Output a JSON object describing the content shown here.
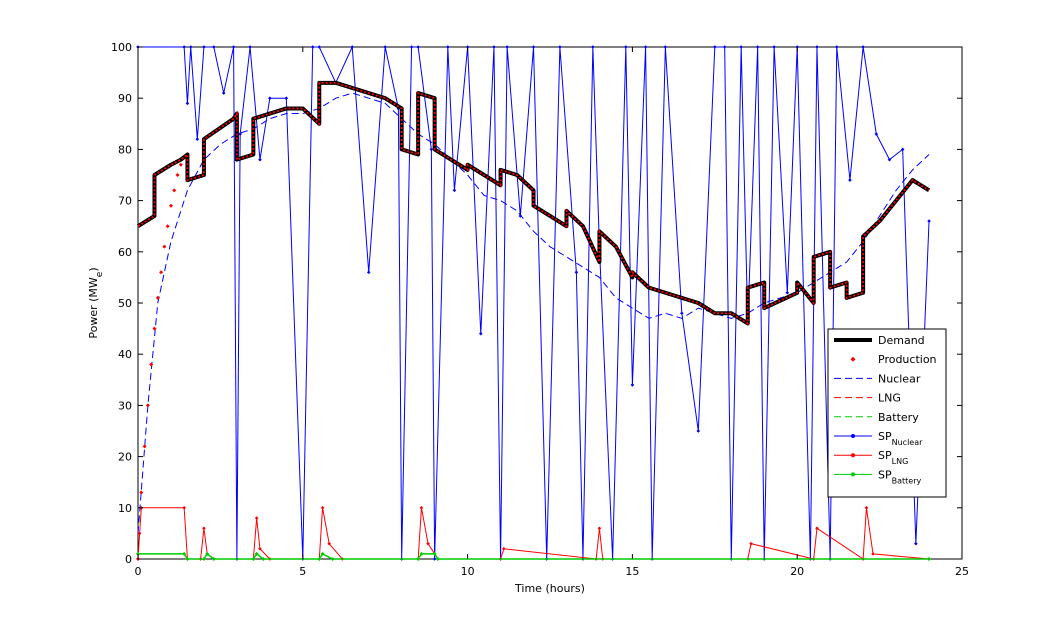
{
  "chart_data": {
    "type": "line",
    "xlabel": "Time (hours)",
    "ylabel_main": "Power (MW",
    "ylabel_sub": "e",
    "ylabel_close": ")",
    "xlim": [
      0,
      25
    ],
    "ylim": [
      0,
      100
    ],
    "x_ticks": [
      "0",
      "5",
      "10",
      "15",
      "20",
      "25"
    ],
    "y_ticks": [
      "0",
      "10",
      "20",
      "30",
      "40",
      "50",
      "60",
      "70",
      "80",
      "90",
      "100"
    ],
    "grid": false,
    "legend_position": "lower-right",
    "legend": [
      {
        "label": "Demand",
        "sub": "",
        "style": "thick-solid",
        "color": "#000000"
      },
      {
        "label": "Production",
        "sub": "",
        "style": "dots",
        "color": "#ff0000"
      },
      {
        "label": "Nuclear",
        "sub": "",
        "style": "dashed",
        "color": "#0000ff"
      },
      {
        "label": "LNG",
        "sub": "",
        "style": "dashed",
        "color": "#ff0000"
      },
      {
        "label": "Battery",
        "sub": "",
        "style": "dashed",
        "color": "#00cc00"
      },
      {
        "label": "SP",
        "sub": "Nuclear",
        "style": "line-dots",
        "color": "#0000ff"
      },
      {
        "label": "SP",
        "sub": "LNG",
        "style": "line-dots",
        "color": "#ff0000"
      },
      {
        "label": "SP",
        "sub": "Battery",
        "style": "line-dots",
        "color": "#00cc00"
      }
    ],
    "series": [
      {
        "name": "Demand",
        "color": "#000000",
        "x": [
          0,
          0.5,
          0.5,
          1.0,
          1.3,
          1.5,
          1.5,
          2.0,
          2.0,
          2.9,
          3.0,
          3.0,
          3.5,
          3.5,
          4.5,
          5.0,
          5.5,
          5.5,
          6.0,
          6.5,
          7.5,
          8.0,
          8.0,
          8.5,
          8.5,
          9.0,
          9.0,
          9.5,
          10.0,
          10.0,
          10.5,
          11.0,
          11.0,
          11.5,
          12.0,
          12.0,
          12.5,
          13.0,
          13.0,
          13.5,
          14.0,
          14.0,
          14.5,
          15.0,
          15.0,
          15.5,
          16.0,
          16.5,
          17.0,
          17.5,
          18.0,
          18.5,
          18.5,
          19.0,
          19.0,
          20.0,
          20.0,
          20.5,
          20.5,
          21.0,
          21.0,
          21.5,
          21.5,
          22.0,
          22.0,
          22.5,
          23.0,
          23.5,
          24.0
        ],
        "y": [
          65,
          67,
          75,
          77,
          78,
          79,
          74,
          75,
          82,
          86,
          87,
          78,
          79,
          86,
          88,
          88,
          85,
          93,
          93,
          92,
          90,
          88,
          80,
          79,
          91,
          90,
          80,
          78,
          76,
          77,
          75,
          73,
          76,
          75,
          72,
          69,
          67,
          65,
          68,
          65,
          58,
          64,
          61,
          55,
          56,
          53,
          52,
          51,
          50,
          48,
          48,
          46,
          53,
          54,
          49,
          52,
          54,
          50,
          59,
          60,
          53,
          54,
          51,
          52,
          63,
          66,
          70,
          74,
          72
        ]
      },
      {
        "name": "Production",
        "color": "#ff0000",
        "x": [
          0,
          0.1,
          0.2,
          0.3,
          0.4,
          0.5,
          0.6,
          0.7,
          0.8,
          0.9,
          1.0,
          1.1,
          1.2,
          1.3
        ],
        "y": [
          0,
          13,
          22,
          30,
          38,
          45,
          51,
          56,
          61,
          65,
          69,
          72,
          75,
          77
        ]
      },
      {
        "name": "Nuclear",
        "color": "#0000ff",
        "x": [
          0,
          0.3,
          0.6,
          1.0,
          1.5,
          2.0,
          2.5,
          3.0,
          3.5,
          4.0,
          4.5,
          5.0,
          5.5,
          6.0,
          6.5,
          7.0,
          7.5,
          8.0,
          8.5,
          9.0,
          9.5,
          10.0,
          10.5,
          11.0,
          11.5,
          12.0,
          12.5,
          13.0,
          13.5,
          14.0,
          14.5,
          15.0,
          15.5,
          16.0,
          16.5,
          17.0,
          17.5,
          18.0,
          18.5,
          19.0,
          19.5,
          20.0,
          20.5,
          21.0,
          21.5,
          22.0,
          22.5,
          23.0,
          23.5,
          24.0
        ],
        "y": [
          5,
          30,
          50,
          62,
          72,
          78,
          81,
          83,
          84,
          86,
          87,
          87,
          88,
          90,
          91,
          90,
          89,
          86,
          83,
          81,
          78,
          75,
          71,
          70,
          68,
          64,
          61,
          59,
          57,
          55,
          51,
          49,
          47,
          48,
          47,
          49,
          48,
          47,
          48,
          50,
          51,
          52,
          54,
          56,
          58,
          62,
          67,
          72,
          76,
          79
        ]
      },
      {
        "name": "SP_Nuclear",
        "color": "#0000ff",
        "x": [
          0,
          1.4,
          1.5,
          1.6,
          1.8,
          2.0,
          2.3,
          2.6,
          2.9,
          3.0,
          3.1,
          3.4,
          3.7,
          4.0,
          4.5,
          5.0,
          5.3,
          5.5,
          6.0,
          6.5,
          7.0,
          7.5,
          7.9,
          8.0,
          8.3,
          8.5,
          8.9,
          9.0,
          9.4,
          9.6,
          10.0,
          10.4,
          10.8,
          11.0,
          11.2,
          11.6,
          12.0,
          12.4,
          12.8,
          13.3,
          13.5,
          13.8,
          14.0,
          14.4,
          14.8,
          15.0,
          15.4,
          15.6,
          16.0,
          16.5,
          17.0,
          17.5,
          17.8,
          18.0,
          18.3,
          18.5,
          18.8,
          19.0,
          19.3,
          19.7,
          20.0,
          20.4,
          20.6,
          21.0,
          21.2,
          21.6,
          22.0,
          22.4,
          22.8,
          23.2,
          23.6,
          24.0
        ],
        "y": [
          100,
          100,
          89,
          100,
          82,
          100,
          100,
          91,
          100,
          0,
          83,
          100,
          78,
          90,
          90,
          0,
          100,
          100,
          93,
          100,
          56,
          100,
          88,
          0,
          100,
          100,
          80,
          0,
          100,
          72,
          100,
          44,
          100,
          0,
          100,
          67,
          100,
          0,
          100,
          56,
          0,
          100,
          61,
          0,
          100,
          34,
          100,
          0,
          100,
          48,
          25,
          100,
          100,
          0,
          100,
          46,
          100,
          0,
          100,
          52,
          100,
          0,
          100,
          0,
          100,
          74,
          100,
          83,
          78,
          80,
          3,
          66
        ]
      },
      {
        "name": "SP_LNG",
        "color": "#ff0000",
        "x": [
          0,
          0.05,
          0.1,
          1.4,
          1.5,
          1.9,
          2.0,
          2.1,
          2.3,
          3.5,
          3.6,
          3.7,
          4.0,
          5.5,
          5.6,
          5.8,
          6.2,
          8.5,
          8.6,
          8.8,
          9.1,
          11.0,
          11.1,
          13.9,
          14.0,
          14.1,
          18.5,
          18.6,
          20.5,
          20.6,
          22.0,
          22.1,
          22.3,
          24.0
        ],
        "y": [
          0,
          5,
          10,
          10,
          0,
          0,
          6,
          1,
          0,
          0,
          8,
          2,
          0,
          0,
          10,
          3,
          0,
          0,
          10,
          3,
          0,
          0,
          2,
          0,
          6,
          0,
          0,
          3,
          0,
          6,
          0,
          10,
          1,
          0
        ]
      },
      {
        "name": "SP_Battery",
        "color": "#00cc00",
        "x": [
          0,
          1.4,
          1.5,
          2.0,
          2.1,
          2.3,
          3.5,
          3.6,
          3.8,
          5.5,
          5.6,
          5.9,
          8.5,
          8.6,
          9.0,
          9.1,
          24.0
        ],
        "y": [
          1,
          1,
          0,
          0,
          1,
          0,
          0,
          1,
          0,
          0,
          1,
          0,
          0,
          1,
          1,
          0,
          0
        ]
      }
    ]
  }
}
